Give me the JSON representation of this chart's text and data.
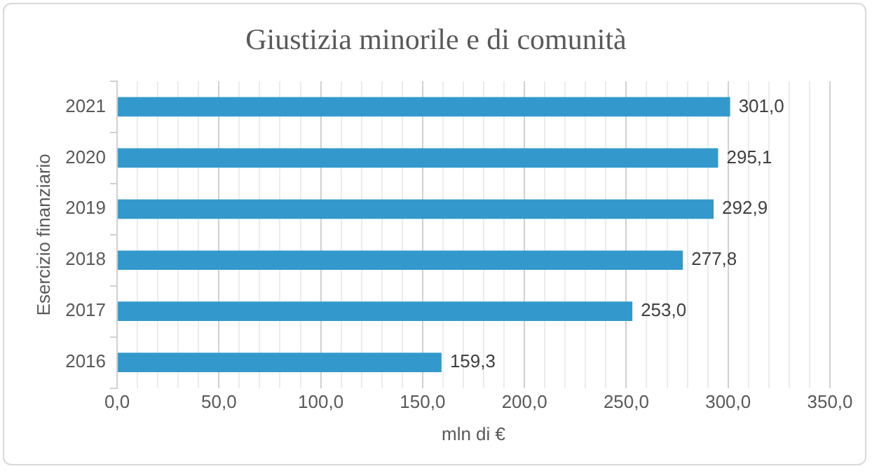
{
  "chart_data": {
    "type": "bar",
    "orientation": "horizontal",
    "title": "Giustizia minorile e di comunità",
    "xlabel": "mln di €",
    "ylabel": "Esercizio finanziario",
    "categories": [
      "2021",
      "2020",
      "2019",
      "2018",
      "2017",
      "2016"
    ],
    "values": [
      301.0,
      295.1,
      292.9,
      277.8,
      253.0,
      159.3
    ],
    "color": "#3399cc",
    "value_labels": [
      "301,0",
      "295,1",
      "292,9",
      "277,8",
      "253,0",
      "159,3"
    ],
    "xlim": [
      0,
      350
    ],
    "xticks": [
      {
        "value": 0,
        "label": "0,0"
      },
      {
        "value": 10,
        "label": null
      },
      {
        "value": 20,
        "label": null
      },
      {
        "value": 30,
        "label": null
      },
      {
        "value": 40,
        "label": null
      },
      {
        "value": 50,
        "label": "50,0"
      },
      {
        "value": 60,
        "label": null
      },
      {
        "value": 70,
        "label": null
      },
      {
        "value": 80,
        "label": null
      },
      {
        "value": 90,
        "label": null
      },
      {
        "value": 100,
        "label": "100,0"
      },
      {
        "value": 110,
        "label": null
      },
      {
        "value": 120,
        "label": null
      },
      {
        "value": 130,
        "label": null
      },
      {
        "value": 140,
        "label": null
      },
      {
        "value": 150,
        "label": "150,0"
      },
      {
        "value": 160,
        "label": null
      },
      {
        "value": 170,
        "label": null
      },
      {
        "value": 180,
        "label": null
      },
      {
        "value": 190,
        "label": null
      },
      {
        "value": 200,
        "label": "200,0"
      },
      {
        "value": 210,
        "label": null
      },
      {
        "value": 220,
        "label": null
      },
      {
        "value": 230,
        "label": null
      },
      {
        "value": 240,
        "label": null
      },
      {
        "value": 250,
        "label": "250,0"
      },
      {
        "value": 260,
        "label": null
      },
      {
        "value": 270,
        "label": null
      },
      {
        "value": 280,
        "label": null
      },
      {
        "value": 290,
        "label": null
      },
      {
        "value": 300,
        "label": "300,0"
      },
      {
        "value": 310,
        "label": null
      },
      {
        "value": 320,
        "label": null
      },
      {
        "value": 330,
        "label": null
      },
      {
        "value": 340,
        "label": null
      },
      {
        "value": 350,
        "label": "350,0"
      }
    ],
    "grid": "x",
    "legend": false
  }
}
